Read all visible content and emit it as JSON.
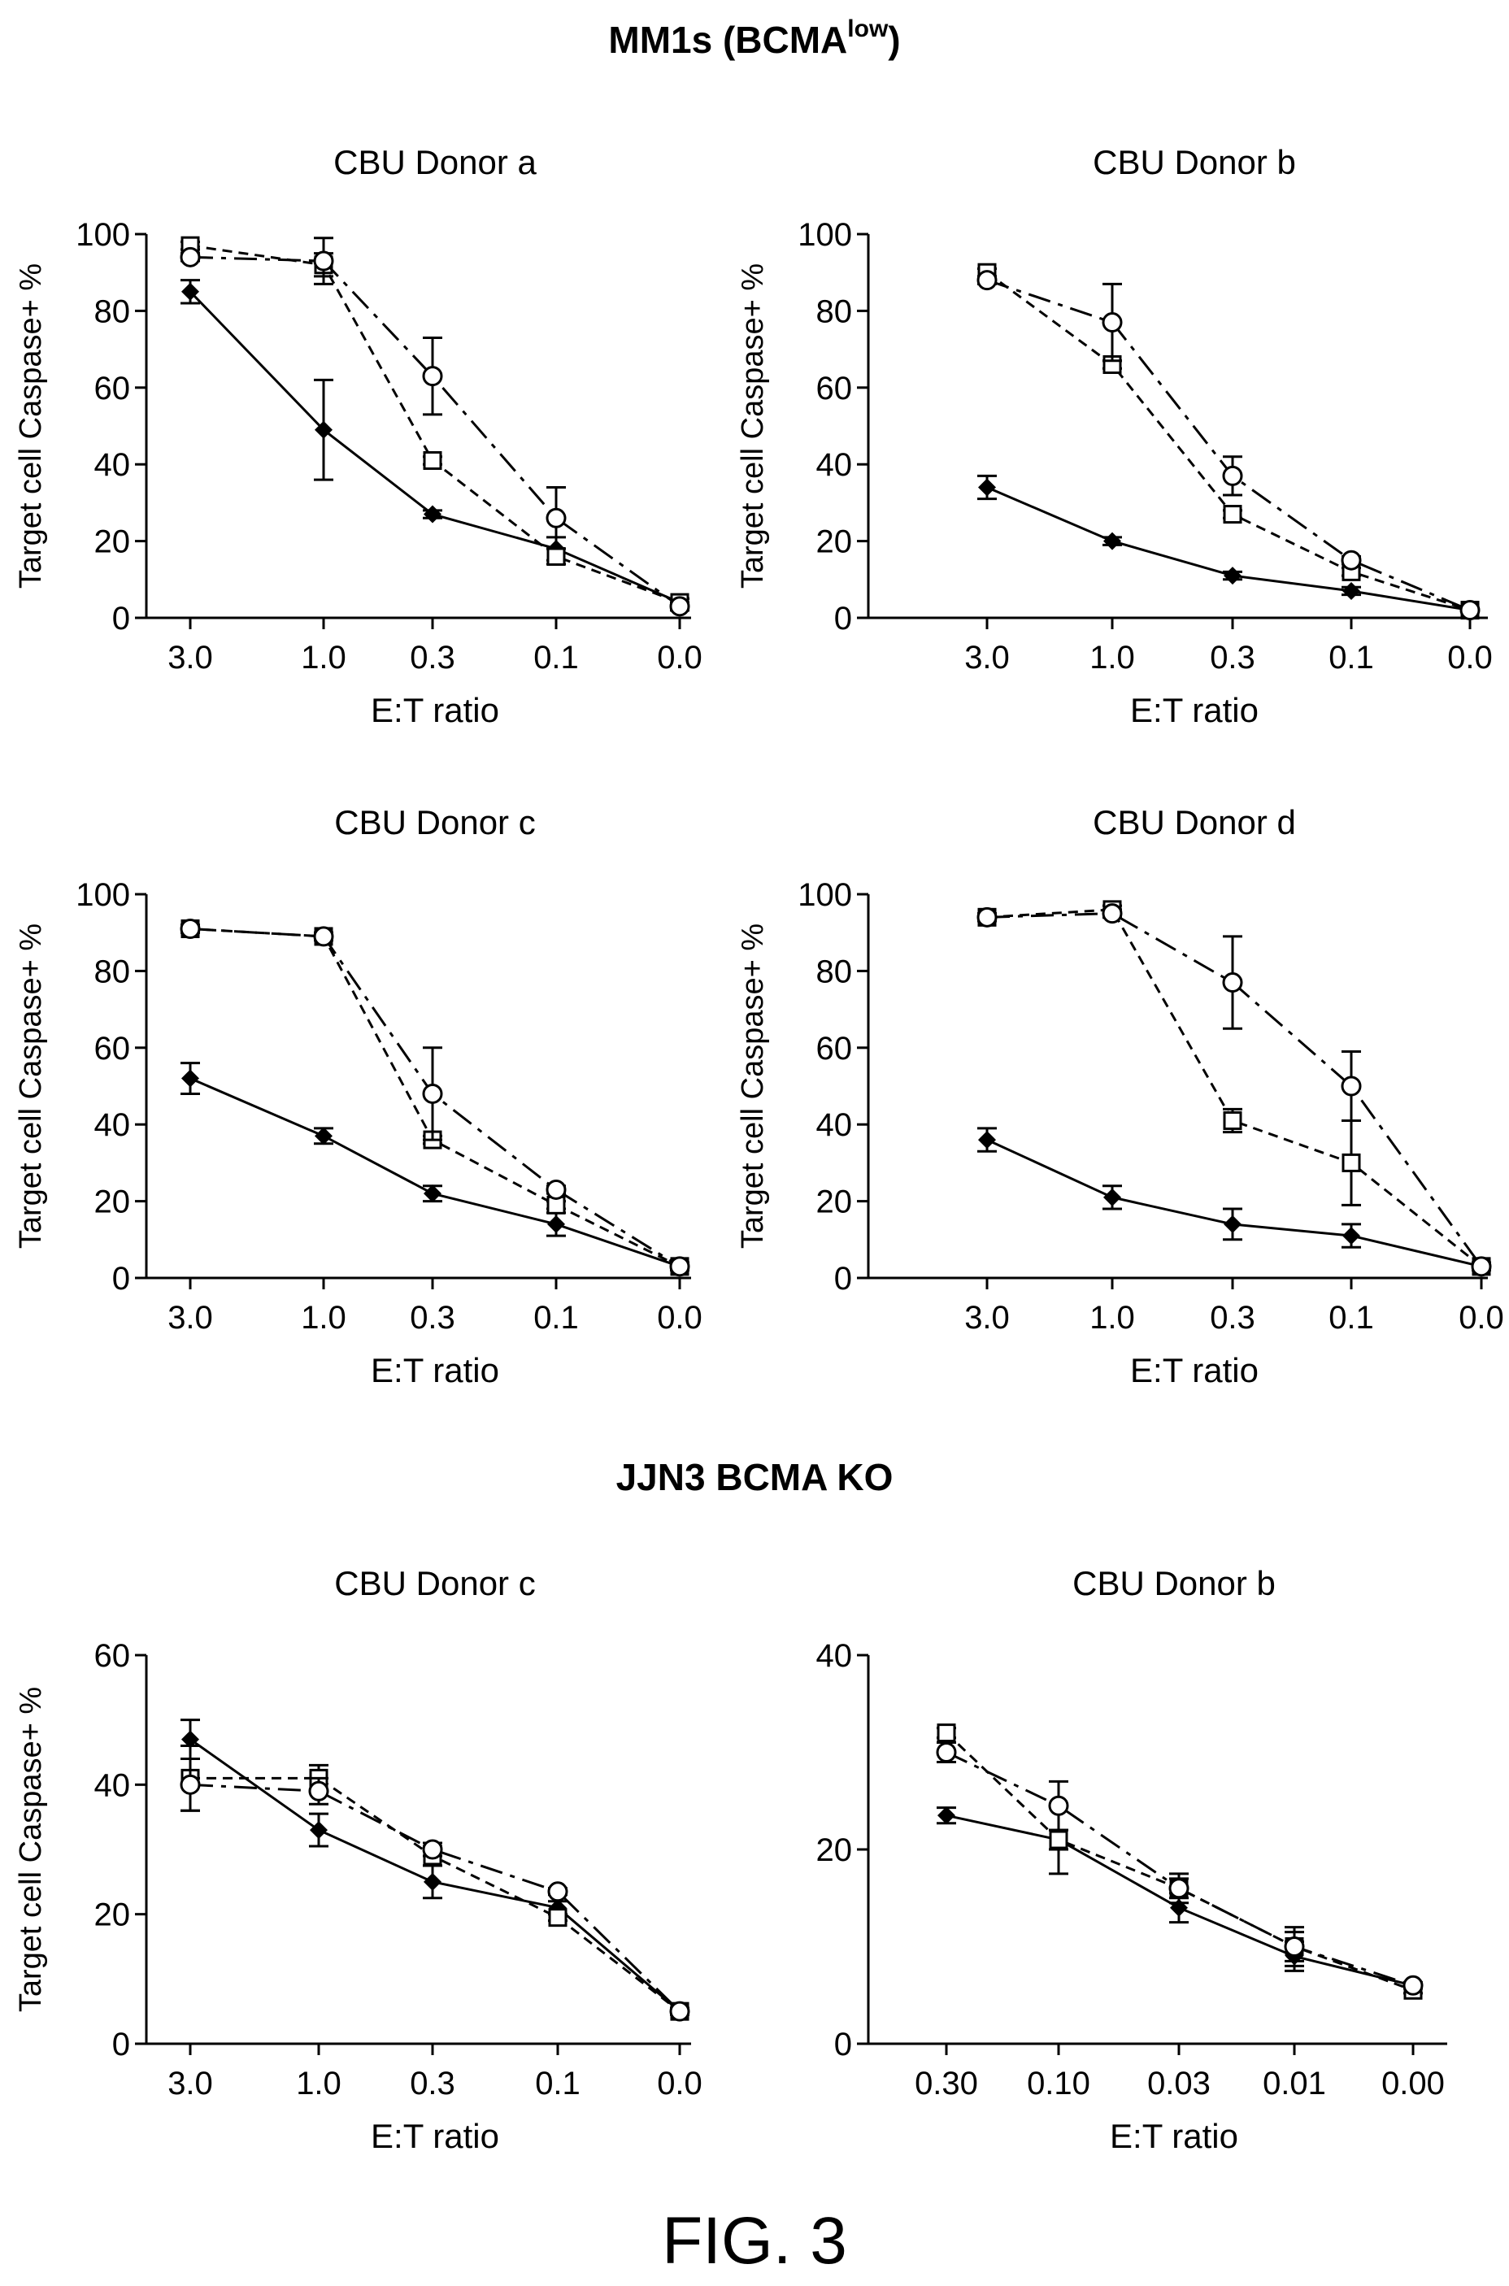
{
  "figure": {
    "label": "FIG. 3",
    "section_1": {
      "title": "MM1s (BCMA",
      "title_sup": "low",
      "title_close": ")"
    },
    "section_2": {
      "title": "JJN3 BCMA KO"
    }
  },
  "chart_data": [
    {
      "type": "line",
      "title": "CBU Donor a",
      "xlabel": "E:T ratio",
      "ylabel": "Target cell Caspase+ %",
      "categories": [
        "3.0",
        "1.0",
        "0.3",
        "0.1",
        "0.0"
      ],
      "ylim": [
        0,
        100
      ],
      "yticks": [
        0,
        20,
        40,
        60,
        80,
        100
      ],
      "series": [
        {
          "marker": "diamond",
          "style": "solid",
          "values": [
            85,
            49,
            27,
            18,
            4
          ],
          "errors": [
            3,
            13,
            1,
            3,
            1
          ]
        },
        {
          "marker": "square",
          "style": "dashed",
          "values": [
            97,
            92,
            41,
            16,
            4
          ],
          "errors": [
            1,
            3,
            1,
            2,
            1
          ]
        },
        {
          "marker": "circle",
          "style": "longdash",
          "values": [
            94,
            93,
            63,
            26,
            3
          ],
          "errors": [
            1,
            6,
            10,
            8,
            1
          ]
        }
      ]
    },
    {
      "type": "line",
      "title": "CBU Donor b",
      "xlabel": "E:T ratio",
      "ylabel": "Target cell Caspase+ %",
      "categories": [
        "3.0",
        "1.0",
        "0.3",
        "0.1",
        "0.0"
      ],
      "ylim": [
        0,
        100
      ],
      "yticks": [
        0,
        20,
        40,
        60,
        80,
        100
      ],
      "series": [
        {
          "marker": "diamond",
          "style": "solid",
          "values": [
            34,
            20,
            11,
            7,
            2
          ],
          "errors": [
            3,
            1,
            1,
            1,
            0
          ]
        },
        {
          "marker": "square",
          "style": "dashed",
          "values": [
            90,
            66,
            27,
            12,
            2
          ],
          "errors": [
            1,
            1,
            1,
            1,
            0
          ]
        },
        {
          "marker": "circle",
          "style": "longdash",
          "values": [
            88,
            77,
            37,
            15,
            2
          ],
          "errors": [
            1,
            10,
            5,
            1,
            0
          ]
        }
      ]
    },
    {
      "type": "line",
      "title": "CBU Donor c",
      "xlabel": "E:T ratio",
      "ylabel": "Target cell Caspase+ %",
      "categories": [
        "3.0",
        "1.0",
        "0.3",
        "0.1",
        "0.0"
      ],
      "ylim": [
        0,
        100
      ],
      "yticks": [
        0,
        20,
        40,
        60,
        80,
        100
      ],
      "series": [
        {
          "marker": "diamond",
          "style": "solid",
          "values": [
            52,
            37,
            22,
            14,
            3
          ],
          "errors": [
            4,
            2,
            2,
            3,
            1
          ]
        },
        {
          "marker": "square",
          "style": "dashed",
          "values": [
            91,
            89,
            36,
            19,
            3
          ],
          "errors": [
            1,
            1,
            1,
            1,
            1
          ]
        },
        {
          "marker": "circle",
          "style": "longdash",
          "values": [
            91,
            89,
            48,
            23,
            3
          ],
          "errors": [
            1,
            1,
            12,
            1,
            1
          ]
        }
      ]
    },
    {
      "type": "line",
      "title": "CBU Donor d",
      "xlabel": "E:T ratio",
      "ylabel": "Target cell Caspase+ %",
      "categories": [
        "3.0",
        "1.0",
        "0.3",
        "0.1",
        "0.0"
      ],
      "ylim": [
        0,
        100
      ],
      "yticks": [
        0,
        20,
        40,
        60,
        80,
        100
      ],
      "series": [
        {
          "marker": "diamond",
          "style": "solid",
          "values": [
            36,
            21,
            14,
            11,
            3
          ],
          "errors": [
            3,
            3,
            4,
            3,
            1
          ]
        },
        {
          "marker": "square",
          "style": "dashed",
          "values": [
            94,
            96,
            41,
            30,
            3
          ],
          "errors": [
            1,
            1,
            3,
            11,
            1
          ]
        },
        {
          "marker": "circle",
          "style": "longdash",
          "values": [
            94,
            95,
            77,
            50,
            3
          ],
          "errors": [
            1,
            1,
            12,
            9,
            1
          ]
        }
      ]
    },
    {
      "type": "line",
      "title": "CBU Donor c",
      "xlabel": "E:T ratio",
      "ylabel": "Target cell Caspase+ %",
      "categories": [
        "3.0",
        "1.0",
        "0.3",
        "0.1",
        "0.0"
      ],
      "ylim": [
        0,
        60
      ],
      "yticks": [
        0,
        20,
        40,
        60
      ],
      "series": [
        {
          "marker": "diamond",
          "style": "solid",
          "values": [
            47,
            33,
            25,
            21,
            5
          ],
          "errors": [
            3,
            2.5,
            2.5,
            1,
            0.5
          ]
        },
        {
          "marker": "square",
          "style": "dashed",
          "values": [
            41,
            41,
            29,
            19.5,
            5
          ],
          "errors": [
            5,
            2,
            1.5,
            0.5,
            0.5
          ]
        },
        {
          "marker": "circle",
          "style": "longdash",
          "values": [
            40,
            39,
            30,
            23.5,
            5
          ],
          "errors": [
            4,
            2,
            1,
            0.5,
            0.5
          ]
        }
      ]
    },
    {
      "type": "line",
      "title": "CBU Donor b",
      "xlabel": "E:T ratio",
      "ylabel": "",
      "categories": [
        "0.30",
        "0.10",
        "0.03",
        "0.01",
        "0.00"
      ],
      "ylim": [
        0,
        40
      ],
      "yticks": [
        0,
        20,
        40
      ],
      "series": [
        {
          "marker": "diamond",
          "style": "solid",
          "values": [
            23.5,
            21,
            14,
            9,
            6
          ],
          "errors": [
            0.8,
            3.5,
            1.5,
            1.5,
            0.3
          ]
        },
        {
          "marker": "square",
          "style": "dashed",
          "values": [
            32,
            21,
            16,
            10,
            5.5
          ],
          "errors": [
            0.5,
            1,
            1,
            2,
            0.3
          ]
        },
        {
          "marker": "circle",
          "style": "longdash",
          "values": [
            30,
            24.5,
            16,
            10,
            6
          ],
          "errors": [
            1,
            2.5,
            1.5,
            1.5,
            0.3
          ]
        }
      ]
    }
  ]
}
